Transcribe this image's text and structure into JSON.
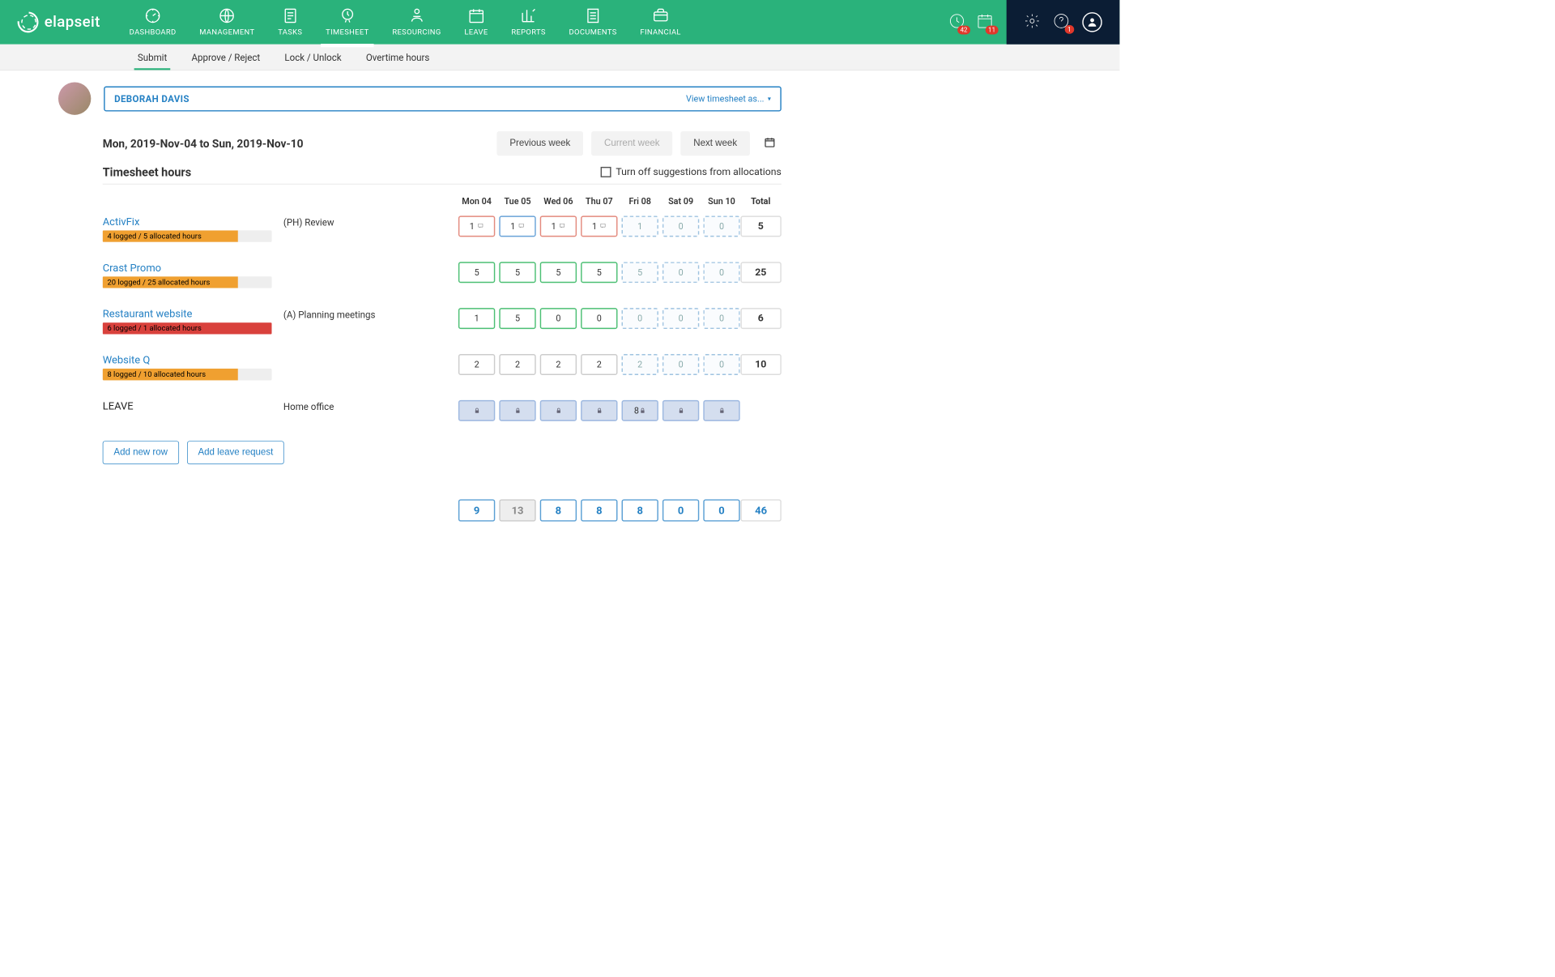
{
  "brand": "elapseit",
  "nav": [
    {
      "label": "DASHBOARD"
    },
    {
      "label": "MANAGEMENT"
    },
    {
      "label": "TASKS"
    },
    {
      "label": "TIMESHEET",
      "active": true
    },
    {
      "label": "RESOURCING"
    },
    {
      "label": "LEAVE"
    },
    {
      "label": "REPORTS"
    },
    {
      "label": "DOCUMENTS"
    },
    {
      "label": "FINANCIAL"
    }
  ],
  "badges": {
    "clock": "42",
    "calendar": "11",
    "help": "1"
  },
  "subtabs": [
    {
      "label": "Submit",
      "active": true
    },
    {
      "label": "Approve / Reject"
    },
    {
      "label": "Lock / Unlock"
    },
    {
      "label": "Overtime hours"
    }
  ],
  "user_name": "DEBORAH DAVIS",
  "view_as": "View timesheet as...",
  "range": "Mon, 2019-Nov-04 to Sun, 2019-Nov-10",
  "weeknav": {
    "prev": "Previous week",
    "curr": "Current week",
    "next": "Next week"
  },
  "sheet_title": "Timesheet hours",
  "toggle_label": "Turn off suggestions from allocations",
  "days": [
    "Mon 04",
    "Tue 05",
    "Wed 06",
    "Thu 07",
    "Fri 08",
    "Sat 09",
    "Sun 10"
  ],
  "total_hdr": "Total",
  "rows": [
    {
      "project": "ActivFix",
      "bar": "4 logged / 5 allocated hours",
      "bar_color": "orange",
      "bar_pct": 80,
      "task": "(PH) Review",
      "cells": [
        {
          "v": "1",
          "style": "red-b",
          "note": true
        },
        {
          "v": "1",
          "style": "blue-b",
          "note": true
        },
        {
          "v": "1",
          "style": "red-b",
          "note": true
        },
        {
          "v": "1",
          "style": "red-b",
          "note": true
        },
        {
          "v": "1",
          "style": "dash"
        },
        {
          "v": "0",
          "style": "dash"
        },
        {
          "v": "0",
          "style": "dash"
        }
      ],
      "total": "5"
    },
    {
      "project": "Crast Promo",
      "bar": "20 logged / 25 allocated hours",
      "bar_color": "orange",
      "bar_pct": 80,
      "task": "",
      "cells": [
        {
          "v": "5",
          "style": "green-b"
        },
        {
          "v": "5",
          "style": "green-b"
        },
        {
          "v": "5",
          "style": "green-b"
        },
        {
          "v": "5",
          "style": "green-b"
        },
        {
          "v": "5",
          "style": "dash"
        },
        {
          "v": "0",
          "style": "dash"
        },
        {
          "v": "0",
          "style": "dash"
        }
      ],
      "total": "25"
    },
    {
      "project": "Restaurant website",
      "bar": "6 logged / 1 allocated hours",
      "bar_color": "red",
      "bar_pct": 100,
      "task": "(A) Planning meetings",
      "cells": [
        {
          "v": "1",
          "style": "green-b"
        },
        {
          "v": "5",
          "style": "green-b"
        },
        {
          "v": "0",
          "style": "green-b"
        },
        {
          "v": "0",
          "style": "green-b"
        },
        {
          "v": "0",
          "style": "dash"
        },
        {
          "v": "0",
          "style": "dash"
        },
        {
          "v": "0",
          "style": "dash"
        }
      ],
      "total": "6"
    },
    {
      "project": "Website Q",
      "bar": "8 logged / 10 allocated hours",
      "bar_color": "orange",
      "bar_pct": 80,
      "task": "",
      "cells": [
        {
          "v": "2",
          "style": "gray-b"
        },
        {
          "v": "2",
          "style": "gray-b"
        },
        {
          "v": "2",
          "style": "gray-b"
        },
        {
          "v": "2",
          "style": "gray-b"
        },
        {
          "v": "2",
          "style": "dash"
        },
        {
          "v": "0",
          "style": "dash"
        },
        {
          "v": "0",
          "style": "dash"
        }
      ],
      "total": "10"
    }
  ],
  "leave_row": {
    "label": "LEAVE",
    "task": "Home office",
    "cells": [
      {
        "lock": true
      },
      {
        "lock": true
      },
      {
        "lock": true
      },
      {
        "lock": true
      },
      {
        "v": "8",
        "lock": true
      },
      {
        "lock": true
      },
      {
        "lock": true
      }
    ]
  },
  "actions": {
    "add_row": "Add new row",
    "add_leave": "Add leave request"
  },
  "day_totals": [
    "9",
    "13",
    "8",
    "8",
    "8",
    "0",
    "0"
  ],
  "day_totals_muted_idx": 1,
  "grand_total": "46",
  "colors": {
    "brand_green": "#2ab27b",
    "link_blue": "#2581c4",
    "badge_red": "#e0382b",
    "bar_orange": "#f0a030",
    "bar_red": "#d9413c"
  }
}
